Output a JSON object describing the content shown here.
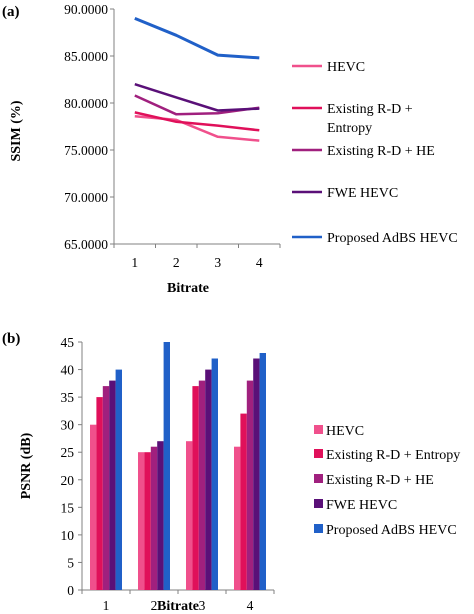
{
  "figure": {
    "series_colors": [
      "#f0508c",
      "#e0105a",
      "#a0207e",
      "#5a1078",
      "#2060c8"
    ]
  },
  "chart_data": [
    {
      "type": "line",
      "panel_label": "(a)",
      "title": "",
      "xlabel": "Bitrate",
      "ylabel": "SSIM (%)",
      "x": [
        1,
        2,
        3,
        4
      ],
      "ylim": [
        65,
        90
      ],
      "yticks": [
        "65.0000",
        "70.0000",
        "75.0000",
        "80.0000",
        "85.0000",
        "90.0000"
      ],
      "xticks": [
        "1",
        "2",
        "3",
        "4"
      ],
      "grid": false,
      "legend_position": "right",
      "series": [
        {
          "name": "HEVC",
          "values": [
            78.6,
            78.2,
            76.4,
            76.0
          ]
        },
        {
          "name": "Existing R-D + Entropy",
          "values": [
            79.0,
            78.0,
            77.6,
            77.1
          ]
        },
        {
          "name": "Existing R-D + HE",
          "values": [
            80.8,
            78.8,
            78.9,
            79.5
          ]
        },
        {
          "name": "FWE HEVC",
          "values": [
            82.0,
            80.6,
            79.2,
            79.4
          ]
        },
        {
          "name": "Proposed AdBS HEVC",
          "values": [
            89.0,
            87.2,
            85.1,
            84.8
          ]
        }
      ]
    },
    {
      "type": "bar",
      "panel_label": "(b)",
      "title": "",
      "xlabel": "Bitrate",
      "ylabel": "PSNR (dB)",
      "categories": [
        "1",
        "2",
        "3",
        "4"
      ],
      "ylim": [
        0,
        45
      ],
      "yticks": [
        "0",
        "5",
        "10",
        "15",
        "20",
        "25",
        "30",
        "35",
        "40",
        "45"
      ],
      "grid": false,
      "legend_position": "right",
      "series": [
        {
          "name": "HEVC",
          "values": [
            30,
            25,
            27,
            26
          ]
        },
        {
          "name": "Existing R-D + Entropy",
          "values": [
            35,
            25,
            37,
            32
          ]
        },
        {
          "name": "Existing R-D + HE",
          "values": [
            37,
            26,
            38,
            38
          ]
        },
        {
          "name": "FWE HEVC",
          "values": [
            38,
            27,
            40,
            42
          ]
        },
        {
          "name": "Proposed AdBS HEVC",
          "values": [
            40,
            45,
            42,
            43
          ]
        }
      ]
    }
  ]
}
